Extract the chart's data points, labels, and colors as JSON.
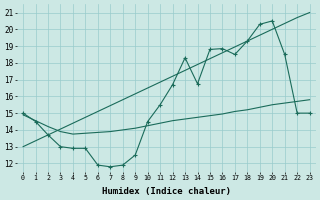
{
  "background_color": "#cce8e4",
  "grid_color": "#99cccc",
  "line_color": "#1a6b5a",
  "xlim": [
    -0.5,
    23.5
  ],
  "ylim": [
    11.5,
    21.5
  ],
  "xlabel": "Humidex (Indice chaleur)",
  "xticks": [
    0,
    1,
    2,
    3,
    4,
    5,
    6,
    7,
    8,
    9,
    10,
    11,
    12,
    13,
    14,
    15,
    16,
    17,
    18,
    19,
    20,
    21,
    22,
    23
  ],
  "yticks": [
    12,
    13,
    14,
    15,
    16,
    17,
    18,
    19,
    20,
    21
  ],
  "line1_x": [
    0,
    1,
    2,
    3,
    4,
    5,
    6,
    7,
    8,
    9,
    10,
    11,
    12,
    13,
    14,
    15,
    16,
    17,
    18,
    19,
    20,
    21,
    22,
    23
  ],
  "line1_y": [
    15.0,
    14.5,
    13.7,
    13.0,
    12.9,
    12.9,
    11.9,
    11.8,
    11.9,
    12.5,
    14.5,
    15.5,
    16.7,
    18.3,
    16.75,
    18.8,
    18.85,
    18.5,
    19.3,
    20.3,
    20.5,
    18.5,
    15.0,
    15.0
  ],
  "line2_x": [
    0,
    1,
    2,
    3,
    4,
    5,
    6,
    7,
    8,
    9,
    10,
    11,
    12,
    13,
    14,
    15,
    16,
    17,
    18,
    19,
    20,
    21,
    22,
    23
  ],
  "line2_y": [
    14.9,
    14.55,
    14.2,
    13.9,
    13.75,
    13.8,
    13.85,
    13.9,
    14.0,
    14.1,
    14.25,
    14.4,
    14.55,
    14.65,
    14.75,
    14.85,
    14.95,
    15.1,
    15.2,
    15.35,
    15.5,
    15.6,
    15.7,
    15.8
  ],
  "line3_x": [
    0,
    1,
    2,
    3,
    4,
    5,
    6,
    7,
    8,
    9,
    10,
    11,
    12,
    13,
    14,
    15,
    16,
    17,
    18,
    19,
    20,
    21,
    22,
    23
  ],
  "line3_y": [
    13.0,
    13.35,
    13.7,
    14.05,
    14.4,
    14.75,
    15.1,
    15.45,
    15.8,
    16.15,
    16.5,
    16.85,
    17.2,
    17.55,
    17.9,
    18.25,
    18.6,
    18.95,
    19.3,
    19.65,
    20.0,
    20.35,
    20.7,
    21.0
  ]
}
